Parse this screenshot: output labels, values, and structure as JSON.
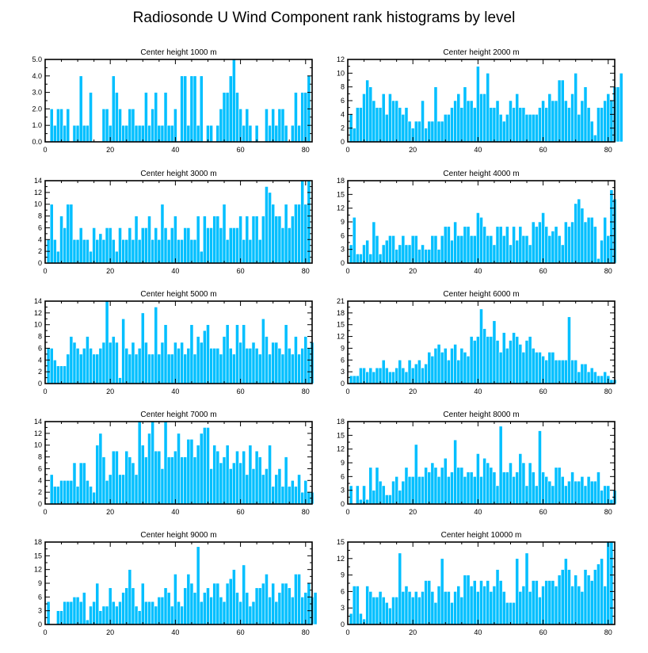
{
  "title": "Radiosonde U Wind Component rank histograms by level",
  "colors": {
    "bar": "#00bfff",
    "bar_edge": "#ffffff",
    "axis": "#000000"
  },
  "chart_data": [
    {
      "type": "bar",
      "title": "Center height 1000 m",
      "xlim": [
        0,
        82
      ],
      "ylim": [
        0,
        5
      ],
      "xticks": [
        0,
        20,
        40,
        60,
        80
      ],
      "yticks": [
        0,
        1,
        2,
        3,
        4,
        5
      ],
      "ytick_labels": [
        "0.0",
        "1.0",
        "2.0",
        "3.0",
        "4.0",
        "5.0"
      ],
      "values": [
        0,
        2,
        1,
        2,
        2,
        1,
        2,
        0,
        1,
        1,
        4,
        1,
        1,
        3,
        0,
        0,
        0,
        2,
        2,
        1,
        4,
        3,
        2,
        1,
        1,
        2,
        2,
        1,
        1,
        1,
        3,
        1,
        2,
        3,
        1,
        1,
        3,
        1,
        1,
        2,
        0,
        4,
        4,
        1,
        4,
        4,
        1,
        4,
        0,
        1,
        1,
        0,
        1,
        2,
        3,
        3,
        4,
        5,
        3,
        2,
        1,
        2,
        1,
        0,
        1,
        0,
        0,
        2,
        1,
        2,
        1,
        2,
        2,
        1,
        0,
        1,
        3,
        1,
        3,
        3,
        4
      ]
    },
    {
      "type": "bar",
      "title": "Center height 2000 m",
      "xlim": [
        0,
        82
      ],
      "ylim": [
        0,
        12
      ],
      "xticks": [
        0,
        20,
        40,
        60,
        80
      ],
      "yticks": [
        0,
        2,
        4,
        6,
        8,
        10,
        12
      ],
      "ytick_labels": [
        "0",
        "2",
        "4",
        "6",
        "8",
        "10",
        "12"
      ],
      "values": [
        4,
        2,
        5,
        5,
        7,
        9,
        8,
        6,
        5,
        5,
        7,
        4,
        7,
        6,
        6,
        5,
        4,
        5,
        3,
        2,
        3,
        3,
        6,
        2,
        3,
        3,
        8,
        3,
        3,
        4,
        4,
        5,
        6,
        7,
        5,
        8,
        6,
        6,
        5,
        11,
        7,
        7,
        10,
        5,
        5,
        6,
        4,
        3,
        4,
        6,
        5,
        7,
        5,
        5,
        4,
        4,
        4,
        4,
        5,
        6,
        5,
        7,
        6,
        6,
        9,
        9,
        6,
        5,
        7,
        10,
        4,
        6,
        8,
        5,
        3,
        1,
        5,
        5,
        6,
        7,
        6,
        8,
        8,
        10
      ]
    },
    {
      "type": "bar",
      "title": "Center height 3000 m",
      "xlim": [
        0,
        82
      ],
      "ylim": [
        0,
        14
      ],
      "xticks": [
        0,
        20,
        40,
        60,
        80
      ],
      "yticks": [
        0,
        2,
        4,
        6,
        8,
        10,
        12,
        14
      ],
      "ytick_labels": [
        "0",
        "2",
        "4",
        "6",
        "8",
        "10",
        "12",
        "14"
      ],
      "values": [
        4,
        10,
        4,
        2,
        8,
        6,
        10,
        10,
        4,
        4,
        6,
        4,
        4,
        2,
        6,
        4,
        5,
        4,
        6,
        6,
        4,
        2,
        6,
        4,
        4,
        6,
        4,
        8,
        4,
        6,
        6,
        8,
        4,
        6,
        4,
        10,
        6,
        4,
        6,
        8,
        4,
        4,
        6,
        6,
        4,
        4,
        8,
        2,
        8,
        6,
        6,
        8,
        8,
        6,
        10,
        4,
        6,
        6,
        6,
        8,
        4,
        8,
        4,
        8,
        8,
        4,
        8,
        13,
        12,
        10,
        8,
        8,
        6,
        10,
        6,
        8,
        10,
        10,
        14,
        10,
        14
      ]
    },
    {
      "type": "bar",
      "title": "Center height 4000 m",
      "xlim": [
        0,
        82
      ],
      "ylim": [
        0,
        18
      ],
      "xticks": [
        0,
        20,
        40,
        60,
        80
      ],
      "yticks": [
        0,
        3,
        6,
        9,
        12,
        15,
        18
      ],
      "ytick_labels": [
        "0",
        "3",
        "6",
        "9",
        "12",
        "15",
        "18"
      ],
      "values": [
        4,
        10,
        2,
        2,
        4,
        5,
        2,
        9,
        6,
        2,
        4,
        5,
        6,
        6,
        3,
        4,
        6,
        4,
        4,
        6,
        6,
        3,
        4,
        3,
        3,
        6,
        6,
        3,
        6,
        8,
        8,
        5,
        9,
        6,
        6,
        8,
        8,
        6,
        6,
        11,
        10,
        8,
        6,
        6,
        4,
        8,
        8,
        6,
        8,
        4,
        8,
        5,
        8,
        6,
        6,
        4,
        9,
        8,
        9,
        11,
        8,
        6,
        7,
        8,
        6,
        4,
        9,
        8,
        9,
        13,
        14,
        12,
        9,
        10,
        10,
        8,
        1,
        5,
        10,
        6,
        16,
        14
      ]
    },
    {
      "type": "bar",
      "title": "Center height 5000 m",
      "xlim": [
        0,
        82
      ],
      "ylim": [
        0,
        14
      ],
      "xticks": [
        0,
        20,
        40,
        60,
        80
      ],
      "yticks": [
        0,
        2,
        4,
        6,
        8,
        10,
        12,
        14
      ],
      "ytick_labels": [
        "0",
        "2",
        "4",
        "6",
        "8",
        "10",
        "12",
        "14"
      ],
      "values": [
        6,
        6,
        4,
        3,
        3,
        3,
        5,
        8,
        7,
        6,
        5,
        6,
        8,
        6,
        5,
        5,
        6,
        7,
        14,
        7,
        8,
        7,
        1,
        11,
        6,
        5,
        7,
        5,
        6,
        12,
        7,
        5,
        5,
        13,
        5,
        7,
        10,
        5,
        5,
        7,
        6,
        7,
        5,
        6,
        10,
        5,
        8,
        7,
        9,
        10,
        6,
        6,
        6,
        5,
        8,
        10,
        6,
        5,
        10,
        7,
        10,
        6,
        6,
        7,
        6,
        5,
        11,
        8,
        5,
        7,
        7,
        6,
        5,
        10,
        6,
        5,
        8,
        5,
        6,
        8,
        6,
        7
      ]
    },
    {
      "type": "bar",
      "title": "Center height 6000 m",
      "xlim": [
        0,
        82
      ],
      "ylim": [
        0,
        21
      ],
      "xticks": [
        0,
        20,
        40,
        60,
        80
      ],
      "yticks": [
        0,
        3,
        6,
        9,
        12,
        15,
        18,
        21
      ],
      "ytick_labels": [
        "0",
        "3",
        "6",
        "9",
        "12",
        "15",
        "18",
        "21"
      ],
      "values": [
        2,
        2,
        2,
        4,
        4,
        3,
        4,
        3,
        4,
        4,
        6,
        4,
        3,
        3,
        4,
        6,
        4,
        3,
        6,
        4,
        5,
        6,
        4,
        5,
        8,
        7,
        9,
        10,
        8,
        9,
        6,
        9,
        10,
        6,
        9,
        8,
        7,
        12,
        11,
        12,
        19,
        14,
        12,
        12,
        16,
        11,
        8,
        13,
        9,
        11,
        13,
        12,
        10,
        8,
        11,
        12,
        9,
        8,
        8,
        7,
        6,
        8,
        8,
        6,
        6,
        6,
        6,
        17,
        6,
        6,
        3,
        5,
        5,
        3,
        4,
        3,
        2,
        2,
        3,
        2,
        1,
        1
      ]
    },
    {
      "type": "bar",
      "title": "Center height 7000 m",
      "xlim": [
        0,
        82
      ],
      "ylim": [
        0,
        14
      ],
      "xticks": [
        0,
        20,
        40,
        60,
        80
      ],
      "yticks": [
        0,
        2,
        4,
        6,
        8,
        10,
        12,
        14
      ],
      "ytick_labels": [
        "0",
        "2",
        "4",
        "6",
        "8",
        "10",
        "12",
        "14"
      ],
      "values": [
        0,
        5,
        3,
        3,
        4,
        4,
        4,
        4,
        7,
        3,
        7,
        7,
        4,
        3,
        2,
        10,
        12,
        8,
        4,
        5,
        9,
        9,
        5,
        5,
        9,
        8,
        7,
        5,
        14,
        10,
        8,
        12,
        14,
        9,
        9,
        6,
        14,
        8,
        8,
        9,
        12,
        8,
        8,
        11,
        11,
        8,
        10,
        12,
        13,
        13,
        6,
        10,
        9,
        7,
        8,
        10,
        6,
        7,
        9,
        7,
        9,
        5,
        10,
        6,
        9,
        8,
        5,
        6,
        10,
        3,
        5,
        6,
        3,
        8,
        3,
        4,
        3,
        5,
        2,
        4,
        2,
        2
      ]
    },
    {
      "type": "bar",
      "title": "Center height 8000 m",
      "xlim": [
        0,
        82
      ],
      "ylim": [
        0,
        18
      ],
      "xticks": [
        0,
        20,
        40,
        60,
        80
      ],
      "yticks": [
        0,
        3,
        6,
        9,
        12,
        15,
        18
      ],
      "ytick_labels": [
        "0",
        "3",
        "6",
        "9",
        "12",
        "15",
        "18"
      ],
      "values": [
        4,
        0,
        4,
        1,
        4,
        1,
        8,
        3,
        8,
        5,
        4,
        2,
        2,
        5,
        6,
        3,
        5,
        8,
        6,
        6,
        13,
        6,
        6,
        8,
        7,
        9,
        8,
        6,
        8,
        10,
        6,
        7,
        14,
        8,
        8,
        6,
        7,
        7,
        6,
        11,
        6,
        10,
        9,
        8,
        7,
        4,
        17,
        7,
        7,
        9,
        6,
        7,
        11,
        9,
        4,
        9,
        7,
        4,
        16,
        7,
        6,
        5,
        4,
        8,
        8,
        6,
        4,
        5,
        7,
        5,
        5,
        6,
        4,
        6,
        5,
        5,
        7,
        3,
        4,
        4,
        1,
        3
      ]
    },
    {
      "type": "bar",
      "title": "Center height 9000 m",
      "xlim": [
        0,
        82
      ],
      "ylim": [
        0,
        18
      ],
      "xticks": [
        0,
        20,
        40,
        60,
        80
      ],
      "yticks": [
        0,
        3,
        6,
        9,
        12,
        15,
        18
      ],
      "ytick_labels": [
        "0",
        "3",
        "6",
        "9",
        "12",
        "15",
        "18"
      ],
      "values": [
        5,
        0,
        0,
        3,
        3,
        5,
        5,
        5,
        6,
        6,
        5,
        7,
        1,
        4,
        5,
        9,
        3,
        4,
        4,
        8,
        5,
        4,
        5,
        7,
        8,
        12,
        8,
        4,
        3,
        9,
        5,
        5,
        5,
        4,
        6,
        6,
        8,
        7,
        4,
        11,
        5,
        4,
        8,
        11,
        9,
        7,
        17,
        5,
        7,
        8,
        6,
        9,
        9,
        6,
        5,
        9,
        10,
        12,
        7,
        5,
        13,
        7,
        4,
        5,
        8,
        8,
        9,
        11,
        6,
        9,
        5,
        7,
        9,
        9,
        8,
        6,
        11,
        11,
        6,
        7,
        9,
        6,
        7
      ]
    },
    {
      "type": "bar",
      "title": "Center height 10000 m",
      "xlim": [
        0,
        82
      ],
      "ylim": [
        0,
        15
      ],
      "xticks": [
        0,
        20,
        40,
        60,
        80
      ],
      "yticks": [
        0,
        3,
        6,
        9,
        12,
        15
      ],
      "ytick_labels": [
        "0",
        "3",
        "6",
        "9",
        "12",
        "15"
      ],
      "values": [
        2,
        7,
        7,
        2,
        1,
        7,
        6,
        5,
        5,
        6,
        5,
        4,
        3,
        5,
        5,
        13,
        6,
        7,
        6,
        5,
        6,
        5,
        6,
        8,
        8,
        6,
        4,
        7,
        12,
        6,
        6,
        4,
        6,
        7,
        5,
        9,
        9,
        7,
        8,
        6,
        8,
        7,
        8,
        6,
        7,
        10,
        8,
        6,
        4,
        4,
        4,
        12,
        6,
        7,
        13,
        6,
        8,
        8,
        5,
        7,
        8,
        8,
        8,
        7,
        9,
        10,
        12,
        10,
        7,
        9,
        7,
        6,
        10,
        9,
        8,
        10,
        11,
        12,
        7,
        15,
        15
      ]
    }
  ]
}
